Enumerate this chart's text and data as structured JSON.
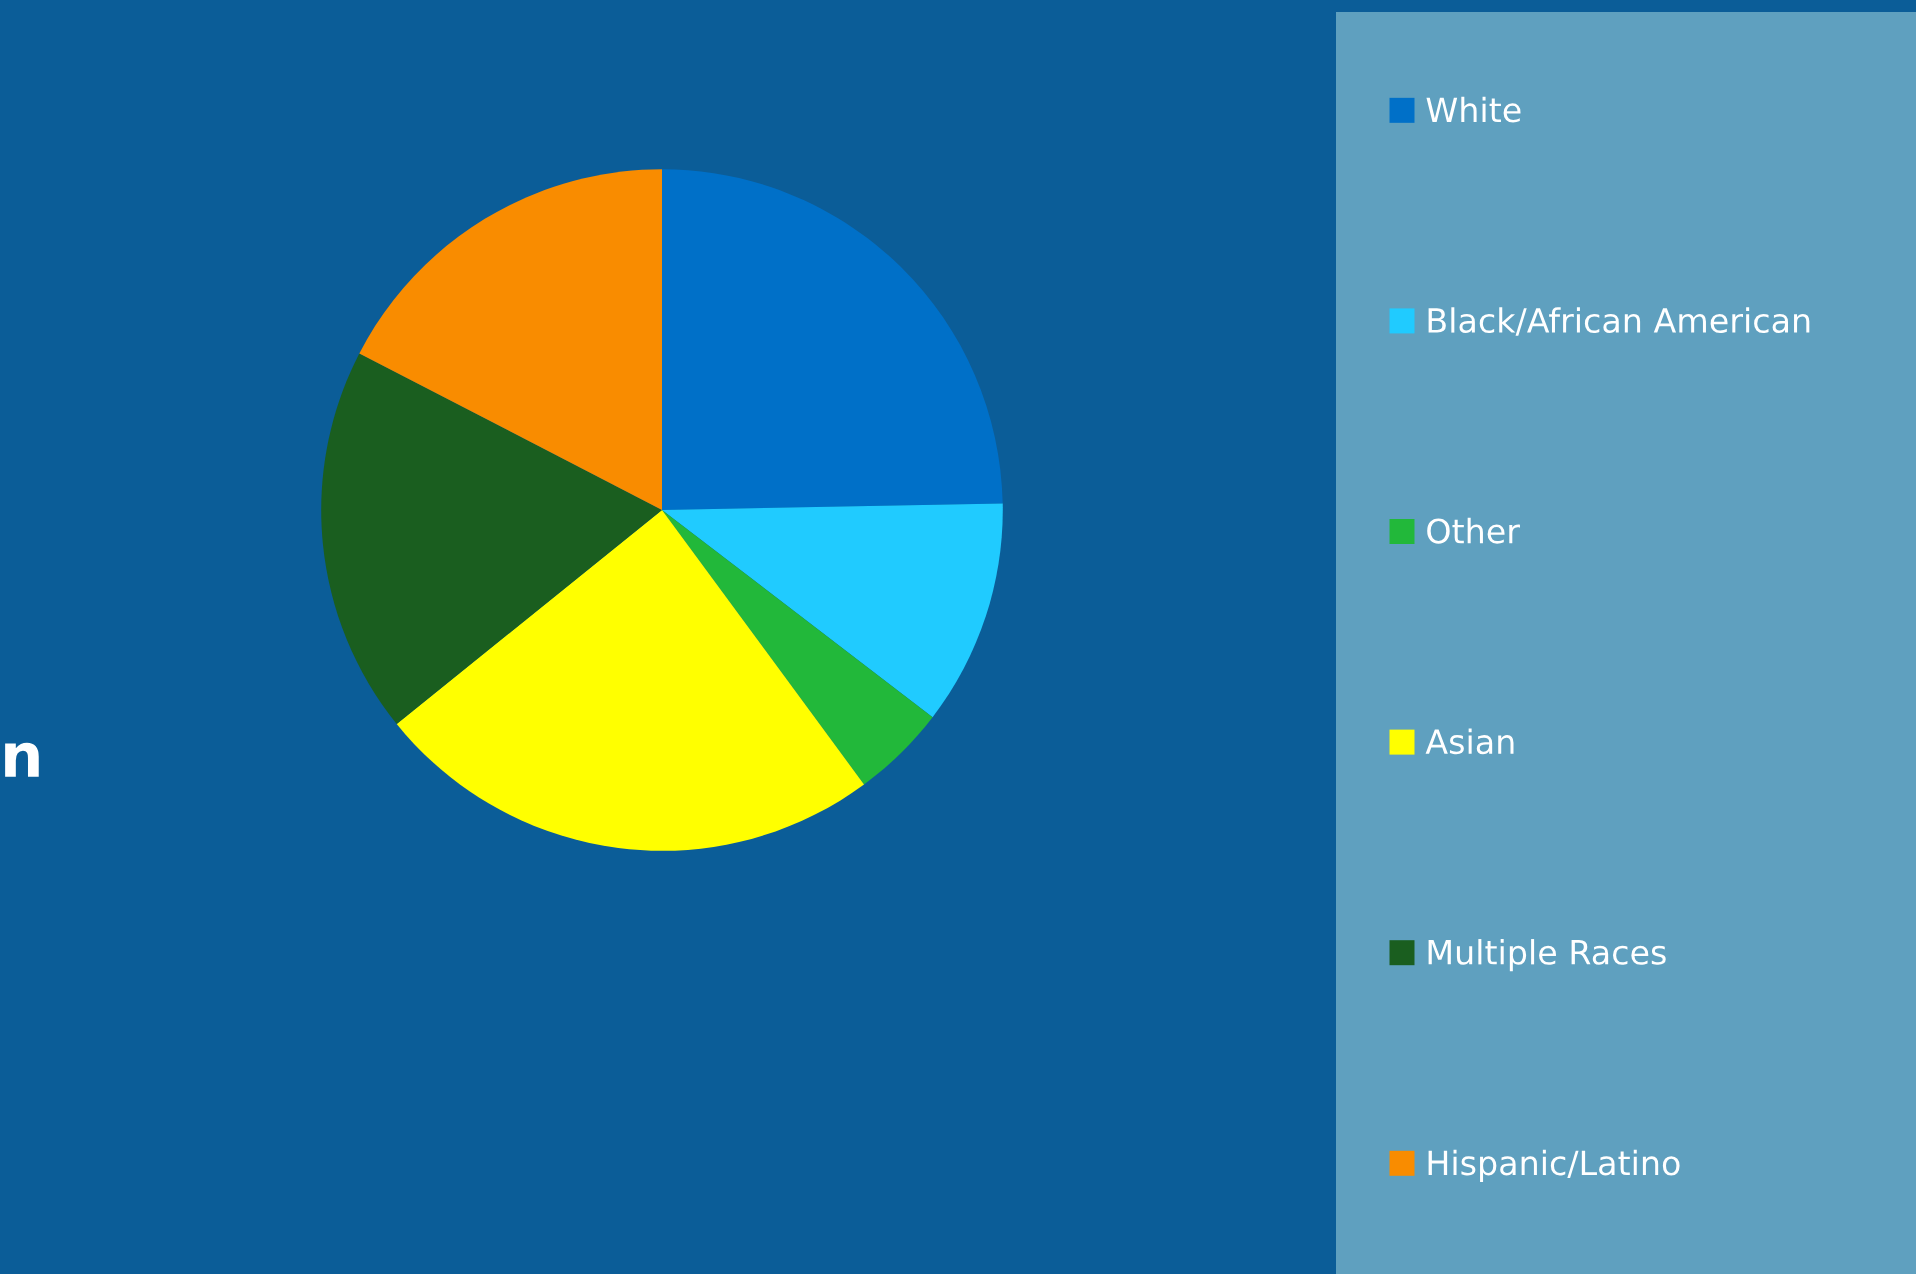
{
  "chart_data": {
    "type": "pie",
    "categories": [
      "White",
      "Black/African American",
      "Other",
      "Asian",
      "Multiple Races",
      "Hispanic/Latino"
    ],
    "values": [
      24.7,
      10.7,
      4.5,
      24.3,
      18.4,
      17.4
    ],
    "colors": [
      "#0070c8",
      "#20cbff",
      "#22b83a",
      "#ffff00",
      "#1a5e1f",
      "#f98c00"
    ],
    "legend": "right",
    "annotations": [
      "n"
    ]
  }
}
